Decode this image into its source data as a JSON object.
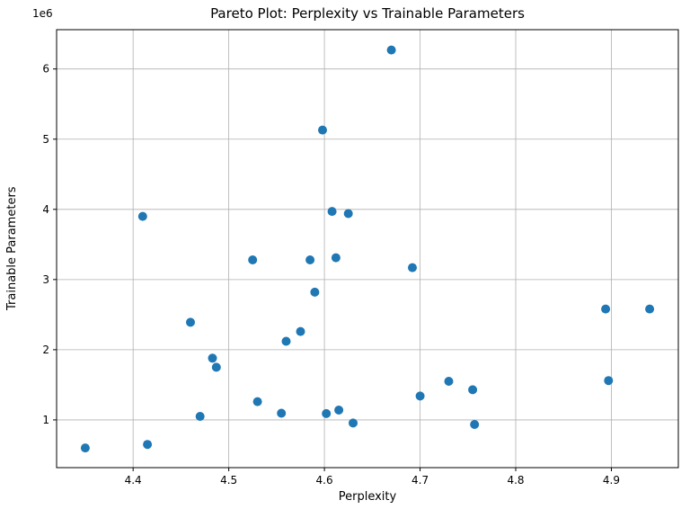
{
  "chart_data": {
    "type": "scatter",
    "title": "Pareto Plot: Perplexity vs Trainable Parameters",
    "xlabel": "Perplexity",
    "ylabel": "Trainable Parameters",
    "y_offset_text": "1e6",
    "marker_color": "#1f77b4",
    "marker_radius": 5,
    "grid": true,
    "grid_color": "#b0b0b0",
    "spine_color": "#000000",
    "background_color": "#ffffff",
    "xlim": [
      4.32,
      4.97
    ],
    "ylim": [
      320000,
      6560000
    ],
    "xticks": [
      4.4,
      4.5,
      4.6,
      4.7,
      4.8,
      4.9
    ],
    "xtick_labels": [
      "4.4",
      "4.5",
      "4.6",
      "4.7",
      "4.8",
      "4.9"
    ],
    "yticks": [
      1000000,
      2000000,
      3000000,
      4000000,
      5000000,
      6000000
    ],
    "ytick_labels": [
      "1",
      "2",
      "3",
      "4",
      "5",
      "6"
    ],
    "points": [
      [
        4.35,
        600000
      ],
      [
        4.41,
        3900000
      ],
      [
        4.415,
        650000
      ],
      [
        4.46,
        2390000
      ],
      [
        4.47,
        1050000
      ],
      [
        4.483,
        1880000
      ],
      [
        4.487,
        1750000
      ],
      [
        4.525,
        3280000
      ],
      [
        4.53,
        1260000
      ],
      [
        4.555,
        1095000
      ],
      [
        4.56,
        2120000
      ],
      [
        4.575,
        2260000
      ],
      [
        4.585,
        3280000
      ],
      [
        4.59,
        2820000
      ],
      [
        4.598,
        5130000
      ],
      [
        4.602,
        1090000
      ],
      [
        4.608,
        3970000
      ],
      [
        4.612,
        3310000
      ],
      [
        4.615,
        1140000
      ],
      [
        4.625,
        3940000
      ],
      [
        4.63,
        955000
      ],
      [
        4.67,
        6270000
      ],
      [
        4.692,
        3170000
      ],
      [
        4.7,
        1340000
      ],
      [
        4.73,
        1550000
      ],
      [
        4.755,
        1430000
      ],
      [
        4.757,
        935000
      ],
      [
        4.894,
        2580000
      ],
      [
        4.897,
        1560000
      ],
      [
        4.94,
        2580000
      ]
    ]
  }
}
